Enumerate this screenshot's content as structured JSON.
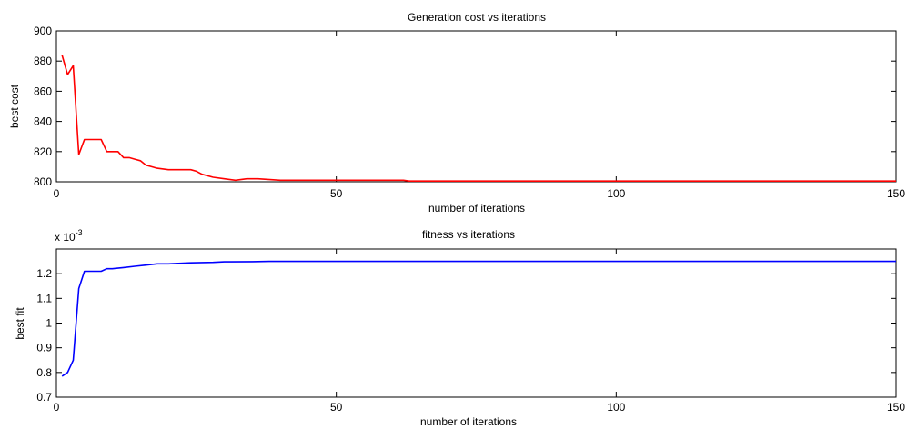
{
  "chart_data": [
    {
      "type": "line",
      "title": "Generation cost vs iterations",
      "xlabel": "number of iterations",
      "ylabel": "best cost",
      "xlim": [
        0,
        150
      ],
      "ylim": [
        800,
        900
      ],
      "xticks": [
        0,
        50,
        100,
        150
      ],
      "yticks": [
        800,
        820,
        840,
        860,
        880,
        900
      ],
      "xtick_labels": [
        "0",
        "50",
        "100",
        "150"
      ],
      "ytick_labels": [
        "800",
        "820",
        "840",
        "860",
        "880",
        "900"
      ],
      "grid": false,
      "series": [
        {
          "color": "#ff0000",
          "x": [
            1,
            2,
            3,
            4,
            5,
            6,
            7,
            8,
            9,
            10,
            11,
            12,
            13,
            14,
            15,
            16,
            17,
            18,
            20,
            22,
            24,
            25,
            26,
            28,
            30,
            32,
            34,
            36,
            40,
            50,
            60,
            62,
            63,
            70,
            80,
            100,
            120,
            150
          ],
          "y": [
            884,
            871,
            877,
            818,
            828,
            828,
            828,
            828,
            820,
            820,
            820,
            816,
            816,
            815,
            814,
            811,
            810,
            809,
            808,
            808,
            808,
            807,
            805,
            803,
            802,
            801,
            802,
            802,
            801,
            801,
            801,
            801,
            800.5,
            800.5,
            800.5,
            800.5,
            800.5,
            800.5
          ]
        }
      ]
    },
    {
      "type": "line",
      "title": "fitness vs iterations",
      "xlabel": "number of iterations",
      "ylabel": "best fit",
      "y_multiplier": "x 10",
      "y_multiplier_exponent": "-3",
      "xlim": [
        0,
        150
      ],
      "ylim": [
        0.7,
        1.3
      ],
      "xticks": [
        0,
        50,
        100,
        150
      ],
      "yticks": [
        0.7,
        0.8,
        0.9,
        1.0,
        1.1,
        1.2
      ],
      "xtick_labels": [
        "0",
        "50",
        "100",
        "150"
      ],
      "ytick_labels": [
        "0.7",
        "0.8",
        "0.9",
        "1",
        "1.1",
        "1.2"
      ],
      "grid": false,
      "series": [
        {
          "color": "#0000ff",
          "x": [
            1,
            2,
            3,
            4,
            5,
            6,
            7,
            8,
            9,
            10,
            12,
            14,
            16,
            18,
            20,
            24,
            28,
            30,
            35,
            38,
            50,
            100,
            150
          ],
          "y": [
            0.785,
            0.8,
            0.85,
            1.14,
            1.21,
            1.21,
            1.21,
            1.21,
            1.22,
            1.22,
            1.225,
            1.23,
            1.235,
            1.24,
            1.24,
            1.244,
            1.246,
            1.248,
            1.249,
            1.25,
            1.25,
            1.25,
            1.25
          ]
        }
      ]
    }
  ]
}
